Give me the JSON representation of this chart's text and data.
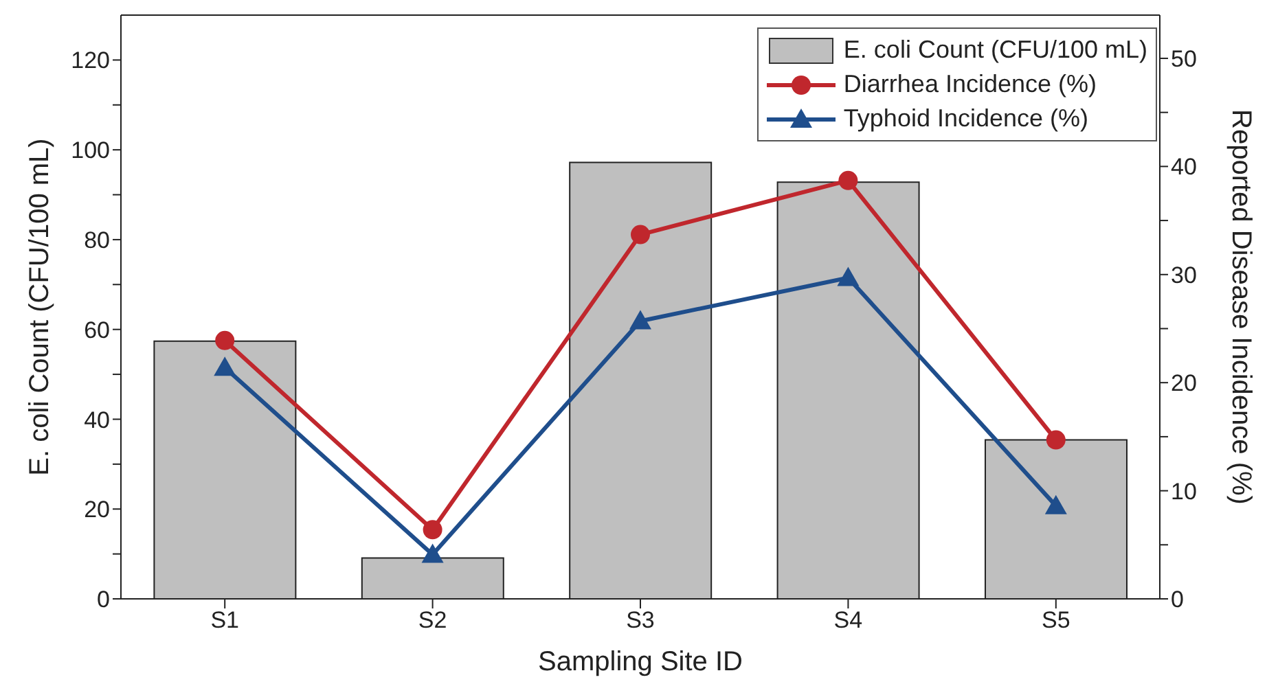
{
  "chart_data": {
    "type": "bar",
    "xlabel": "Sampling Site ID",
    "ylabel": "E. coli Count (CFU/100 mL)",
    "y2label": "Reported Disease Incidence (%)",
    "categories": [
      "S1",
      "S2",
      "S3",
      "S4",
      "S5"
    ],
    "series": [
      {
        "name": "E. coli Count (CFU/100 mL)",
        "color": "#bfbfbf",
        "values": [
          57.4,
          9.1,
          97.2,
          92.8,
          35.4
        ]
      },
      {
        "name": "Diarrhea Incidence (%)",
        "type": "line",
        "axis": "y2",
        "marker": "circle",
        "color": "#c0272d",
        "values": [
          23.9,
          6.4,
          33.7,
          38.7,
          14.7
        ]
      },
      {
        "name": "Typhoid Incidence (%)",
        "type": "line",
        "axis": "y2",
        "marker": "triangle",
        "color": "#1f4e8c",
        "values": [
          21.4,
          4.1,
          25.7,
          29.7,
          8.6
        ]
      }
    ],
    "ylim": [
      0,
      130
    ],
    "yticks": [
      0,
      {
        "value": 10,
        "label": null
      },
      20,
      {
        "value": 30,
        "label": null
      },
      40,
      {
        "value": 50,
        "label": null
      },
      60,
      {
        "value": 70,
        "label": null
      },
      80,
      {
        "value": 90,
        "label": null
      },
      100,
      {
        "value": 110,
        "label": null
      },
      120
    ],
    "y2lim": [
      0,
      54
    ],
    "y2ticks": [
      0,
      {
        "value": 5,
        "label": null
      },
      10,
      {
        "value": 15,
        "label": null
      },
      20,
      {
        "value": 25,
        "label": null
      },
      30,
      {
        "value": 35,
        "label": null
      },
      40,
      {
        "value": 45,
        "label": null
      },
      50
    ],
    "grid": false,
    "legend": "top right",
    "line_style": "solid"
  }
}
